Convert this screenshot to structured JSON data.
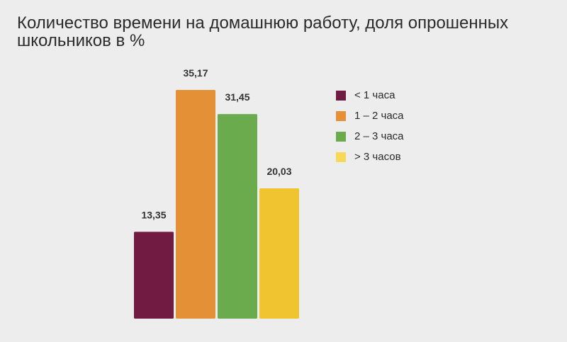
{
  "chart_data": {
    "type": "bar",
    "title": "Количество времени на домашнюю работу, доля опрошенных школьников в %",
    "categories": [
      "< 1 часа",
      "1 – 2 часа",
      "2 – 3 часа",
      "> 3 часов"
    ],
    "values": [
      13.35,
      35.17,
      31.45,
      20.03
    ],
    "value_labels": [
      "13,35",
      "35,17",
      "31,45",
      "20,03"
    ],
    "colors": [
      "#711b42",
      "#e39037",
      "#6aab4e",
      "#f0c431"
    ],
    "legend_colors": [
      "#711b42",
      "#e39037",
      "#6aab4e",
      "#f5d957"
    ],
    "ylim": [
      0,
      40
    ],
    "grid": false,
    "legend_position": "right"
  }
}
